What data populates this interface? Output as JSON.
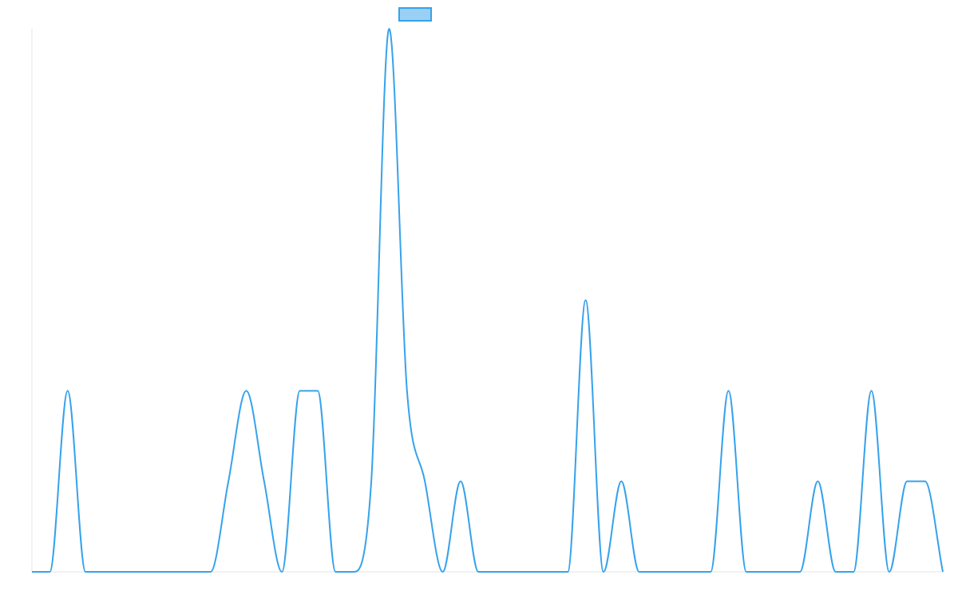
{
  "chart_data": {
    "type": "line",
    "title": "",
    "xlabel": "",
    "ylabel": "",
    "grid": false,
    "legend": {
      "position": "top-center",
      "label": ""
    },
    "colors": {
      "series_line": "#36A2EB",
      "series_fill": "#9AD0F5",
      "axis": "#E5E5E5"
    },
    "ylim": [
      0,
      6
    ],
    "x": [
      0,
      1,
      2,
      3,
      4,
      5,
      6,
      7,
      8,
      9,
      10,
      11,
      12,
      13,
      14,
      15,
      16,
      17,
      18,
      19,
      20,
      21,
      22,
      23,
      24,
      25,
      26,
      27,
      28,
      29,
      30,
      31,
      32,
      33,
      34,
      35,
      36,
      37,
      38,
      39,
      40,
      41,
      42,
      43,
      44,
      45,
      46,
      47,
      48,
      49,
      50,
      51
    ],
    "series": [
      {
        "name": "",
        "values": [
          0,
          0,
          2,
          0,
          0,
          0,
          0,
          0,
          0,
          0,
          0,
          1,
          2,
          1,
          0,
          2,
          2,
          0,
          0,
          1,
          6,
          2,
          1,
          0,
          1,
          0,
          0,
          0,
          0,
          0,
          0,
          3,
          0,
          1,
          0,
          0,
          0,
          0,
          0,
          2,
          0,
          0,
          0,
          0,
          1,
          0,
          0,
          2,
          0,
          1,
          1,
          0
        ]
      }
    ]
  }
}
